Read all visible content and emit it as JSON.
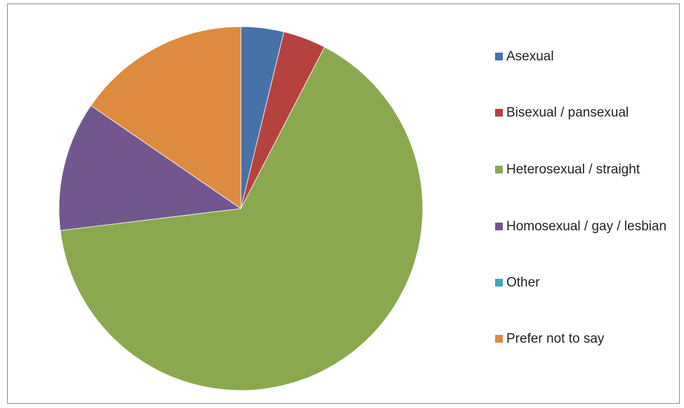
{
  "chart_data": {
    "type": "pie",
    "categories": [
      "Asexual",
      "Bisexual / pansexual",
      "Heterosexual / straight",
      "Homosexual / gay / lesbian",
      "Other",
      "Prefer not to say"
    ],
    "values": [
      3.8,
      3.8,
      65.4,
      11.5,
      0,
      15.4
    ],
    "colors": [
      "#4672a8",
      "#b6423f",
      "#8aa84e",
      "#72578f",
      "#43a2bb",
      "#de8a3f"
    ],
    "legend": "right"
  }
}
